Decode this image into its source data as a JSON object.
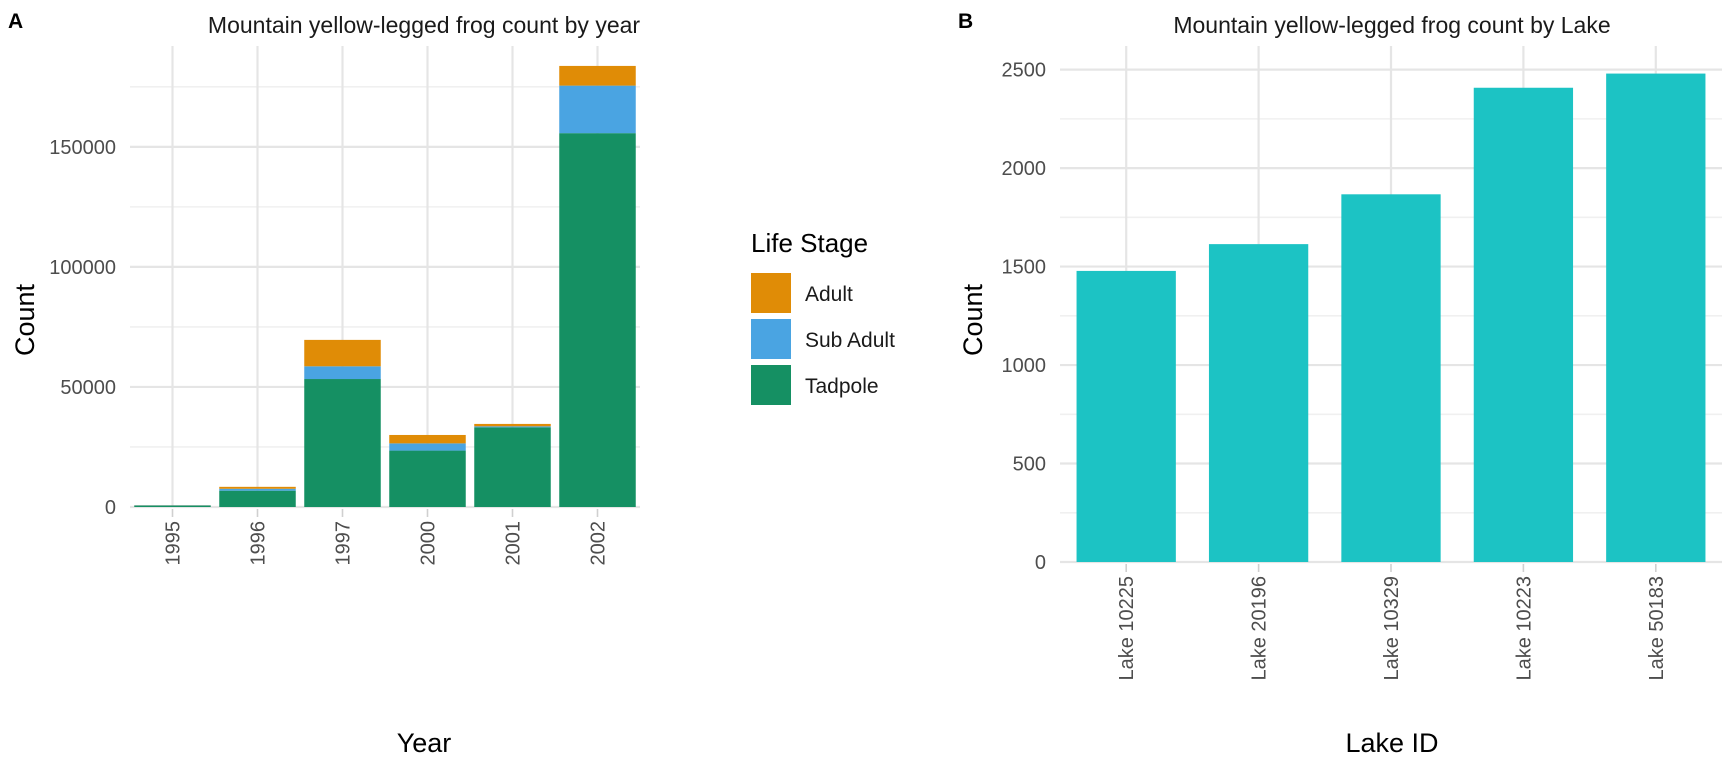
{
  "colors": {
    "adult": "#E08C06",
    "sub_adult": "#4AA4E2",
    "tadpole": "#159063",
    "lake_bar": "#1CC3C4"
  },
  "chart_data": [
    {
      "panel": "A",
      "type": "bar",
      "stacked": true,
      "title": "Mountain yellow-legged frog count by year",
      "xlabel": "Year",
      "ylabel": "Count",
      "categories": [
        "1995",
        "1996",
        "1997",
        "2000",
        "2001",
        "2002"
      ],
      "ylim": [
        0,
        192000
      ],
      "yticks": [
        0,
        50000,
        100000,
        150000
      ],
      "grid": true,
      "legend": {
        "title": "Life Stage",
        "placement": "right"
      },
      "series": [
        {
          "name": "Tadpole",
          "color": "#159063",
          "values": [
            600,
            6800,
            53300,
            23500,
            33200,
            155700
          ]
        },
        {
          "name": "Sub Adult",
          "color": "#4AA4E2",
          "values": [
            100,
            800,
            5300,
            3000,
            400,
            19800
          ]
        },
        {
          "name": "Adult",
          "color": "#E08C06",
          "values": [
            50,
            800,
            11000,
            3500,
            1000,
            8200
          ]
        }
      ],
      "legend_order": [
        "Adult",
        "Sub Adult",
        "Tadpole"
      ]
    },
    {
      "panel": "B",
      "type": "bar",
      "title": "Mountain yellow-legged frog count by Lake",
      "xlabel": "Lake ID",
      "ylabel": "Count",
      "categories": [
        "Lake 10225",
        "Lake 20196",
        "Lake 10329",
        "Lake 10223",
        "Lake 50183"
      ],
      "values": [
        1478,
        1614,
        1867,
        2408,
        2480
      ],
      "ylim": [
        0,
        2620
      ],
      "yticks": [
        0,
        500,
        1000,
        1500,
        2000,
        2500
      ],
      "grid": true,
      "color": "#1CC3C4"
    }
  ]
}
